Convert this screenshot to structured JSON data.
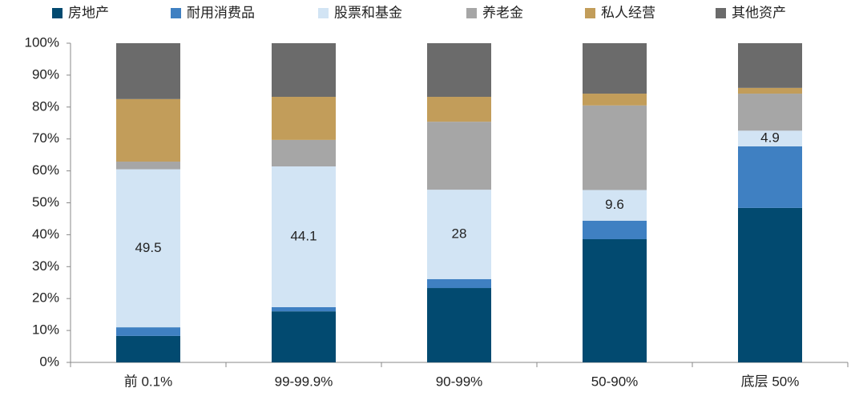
{
  "chart_data": {
    "type": "stacked_bar",
    "categories": [
      "前 0.1%",
      "99-99.9%",
      "90-99%",
      "50-90%",
      "底层 50%"
    ],
    "series": [
      {
        "name": "房地产",
        "color": "#024a70",
        "values": [
          8.3,
          16.0,
          23.3,
          38.6,
          48.4
        ]
      },
      {
        "name": "耐用消费品",
        "color": "#3f80c2",
        "values": [
          2.7,
          1.3,
          2.8,
          5.8,
          19.3
        ]
      },
      {
        "name": "股票和基金",
        "color": "#d2e4f4",
        "values": [
          49.5,
          44.1,
          28,
          9.6,
          4.9
        ],
        "show_labels": true
      },
      {
        "name": "养老金",
        "color": "#a6a6a6",
        "values": [
          2.4,
          8.3,
          21.3,
          26.5,
          11.6
        ]
      },
      {
        "name": "私人经营",
        "color": "#c29d5a",
        "values": [
          19.6,
          13.5,
          7.8,
          3.7,
          1.8
        ]
      },
      {
        "name": "其他资产",
        "color": "#6b6b6b",
        "values": [
          17.5,
          16.8,
          16.8,
          15.8,
          14.0
        ]
      }
    ],
    "ylim": [
      0,
      100
    ],
    "yticks": [
      {
        "value": 0,
        "label": "0%"
      },
      {
        "value": 10,
        "label": "10%"
      },
      {
        "value": 20,
        "label": "20%"
      },
      {
        "value": 30,
        "label": "30%"
      },
      {
        "value": 40,
        "label": "40%"
      },
      {
        "value": 50,
        "label": "50%"
      },
      {
        "value": 60,
        "label": "60%"
      },
      {
        "value": 70,
        "label": "70%"
      },
      {
        "value": 80,
        "label": "80%"
      },
      {
        "value": 90,
        "label": "90%"
      },
      {
        "value": 100,
        "label": "100%"
      }
    ],
    "grid": false,
    "legend": "top"
  }
}
